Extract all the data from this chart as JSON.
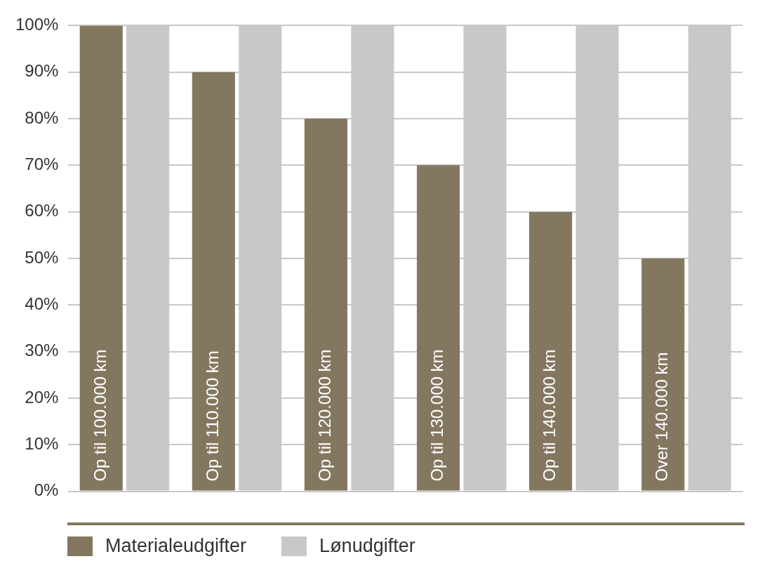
{
  "chart_data": {
    "type": "bar",
    "categories": [
      "Op til 100.000 km",
      "Op til 110.000 km",
      "Op til 120.000 km",
      "Op til 130.000 km",
      "Op til 140.000 km",
      "Over 140.000 km"
    ],
    "series": [
      {
        "name": "Materialeudgifter",
        "color": "#837760",
        "values": [
          100,
          90,
          80,
          70,
          60,
          50
        ]
      },
      {
        "name": "Lønudgifter",
        "color": "#c8c8c8",
        "values": [
          100,
          100,
          100,
          100,
          100,
          100
        ]
      }
    ],
    "ylim": [
      0,
      100
    ],
    "yticks": [
      {
        "value": 0,
        "label": "0%"
      },
      {
        "value": 10,
        "label": "10%"
      },
      {
        "value": 20,
        "label": "20%"
      },
      {
        "value": 30,
        "label": "30%"
      },
      {
        "value": 40,
        "label": "40%"
      },
      {
        "value": 50,
        "label": "50%"
      },
      {
        "value": 60,
        "label": "60%"
      },
      {
        "value": 70,
        "label": "70%"
      },
      {
        "value": 80,
        "label": "80%"
      },
      {
        "value": 90,
        "label": "90%"
      },
      {
        "value": 100,
        "label": "100%"
      }
    ],
    "grid": "y",
    "legend": "bottom left"
  }
}
